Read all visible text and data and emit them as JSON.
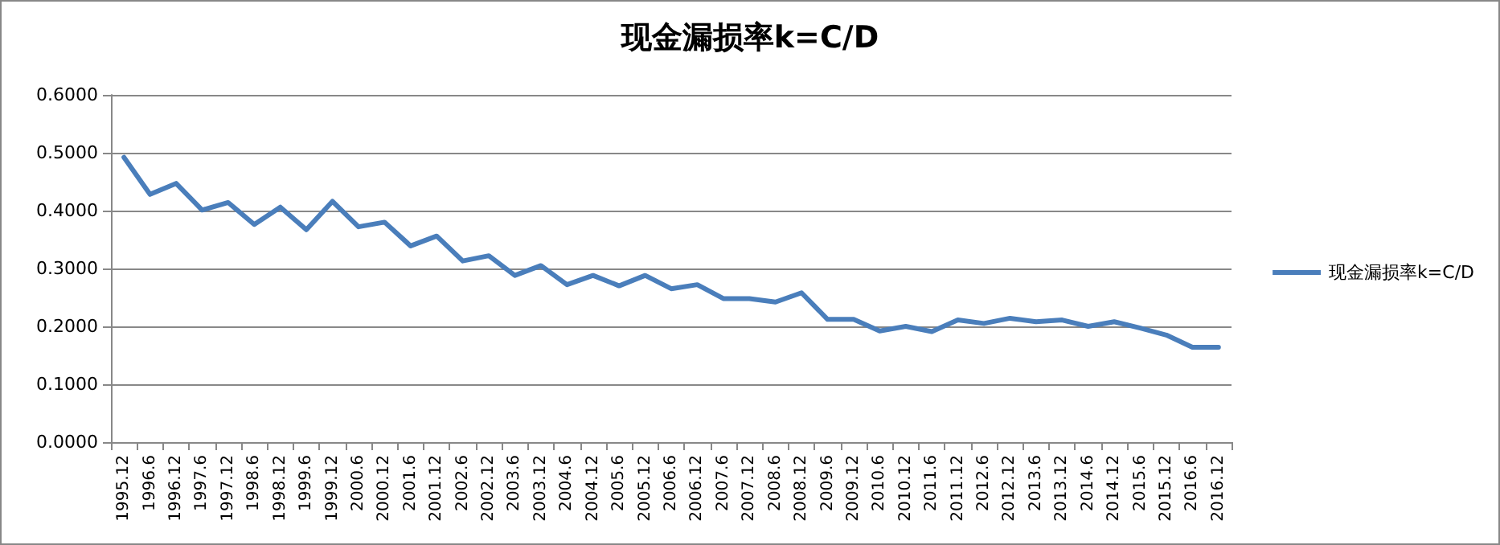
{
  "chart_data": {
    "type": "line",
    "title": "现金漏损率k=C/D",
    "categories": [
      "1995.12",
      "1996.6",
      "1996.12",
      "1997.6",
      "1997.12",
      "1998.6",
      "1998.12",
      "1999.6",
      "1999.12",
      "2000.6",
      "2000.12",
      "2001.6",
      "2001.12",
      "2002.6",
      "2002.12",
      "2003.6",
      "2003.12",
      "2004.6",
      "2004.12",
      "2005.6",
      "2005.12",
      "2006.6",
      "2006.12",
      "2007.6",
      "2007.12",
      "2008.6",
      "2008.12",
      "2009.6",
      "2009.12",
      "2010.6",
      "2010.12",
      "2011.6",
      "2011.12",
      "2012.6",
      "2012.12",
      "2013.6",
      "2013.12",
      "2014.6",
      "2014.12",
      "2015.6",
      "2015.12",
      "2016.6",
      "2016.12"
    ],
    "series": [
      {
        "name": "现金漏损率k=C/D",
        "color": "#4a7ebb",
        "values": [
          0.492,
          0.428,
          0.447,
          0.401,
          0.414,
          0.376,
          0.406,
          0.367,
          0.416,
          0.372,
          0.38,
          0.339,
          0.356,
          0.313,
          0.322,
          0.288,
          0.305,
          0.272,
          0.288,
          0.27,
          0.288,
          0.265,
          0.272,
          0.248,
          0.248,
          0.242,
          0.258,
          0.212,
          0.212,
          0.192,
          0.2,
          0.191,
          0.211,
          0.205,
          0.214,
          0.208,
          0.211,
          0.2,
          0.208,
          0.197,
          0.185,
          0.164,
          0.164
        ]
      }
    ],
    "ylim": [
      0,
      0.6
    ],
    "yticks": [
      {
        "value": 0,
        "label": "0.0000"
      },
      {
        "value": 0.1,
        "label": "0.1000"
      },
      {
        "value": 0.2,
        "label": "0.2000"
      },
      {
        "value": 0.3,
        "label": "0.3000"
      },
      {
        "value": 0.4,
        "label": "0.4000"
      },
      {
        "value": 0.5,
        "label": "0.5000"
      },
      {
        "value": 0.6,
        "label": "0.6000"
      }
    ],
    "grid": "y",
    "legend": "right",
    "marker": "none",
    "line_style": "solid"
  }
}
